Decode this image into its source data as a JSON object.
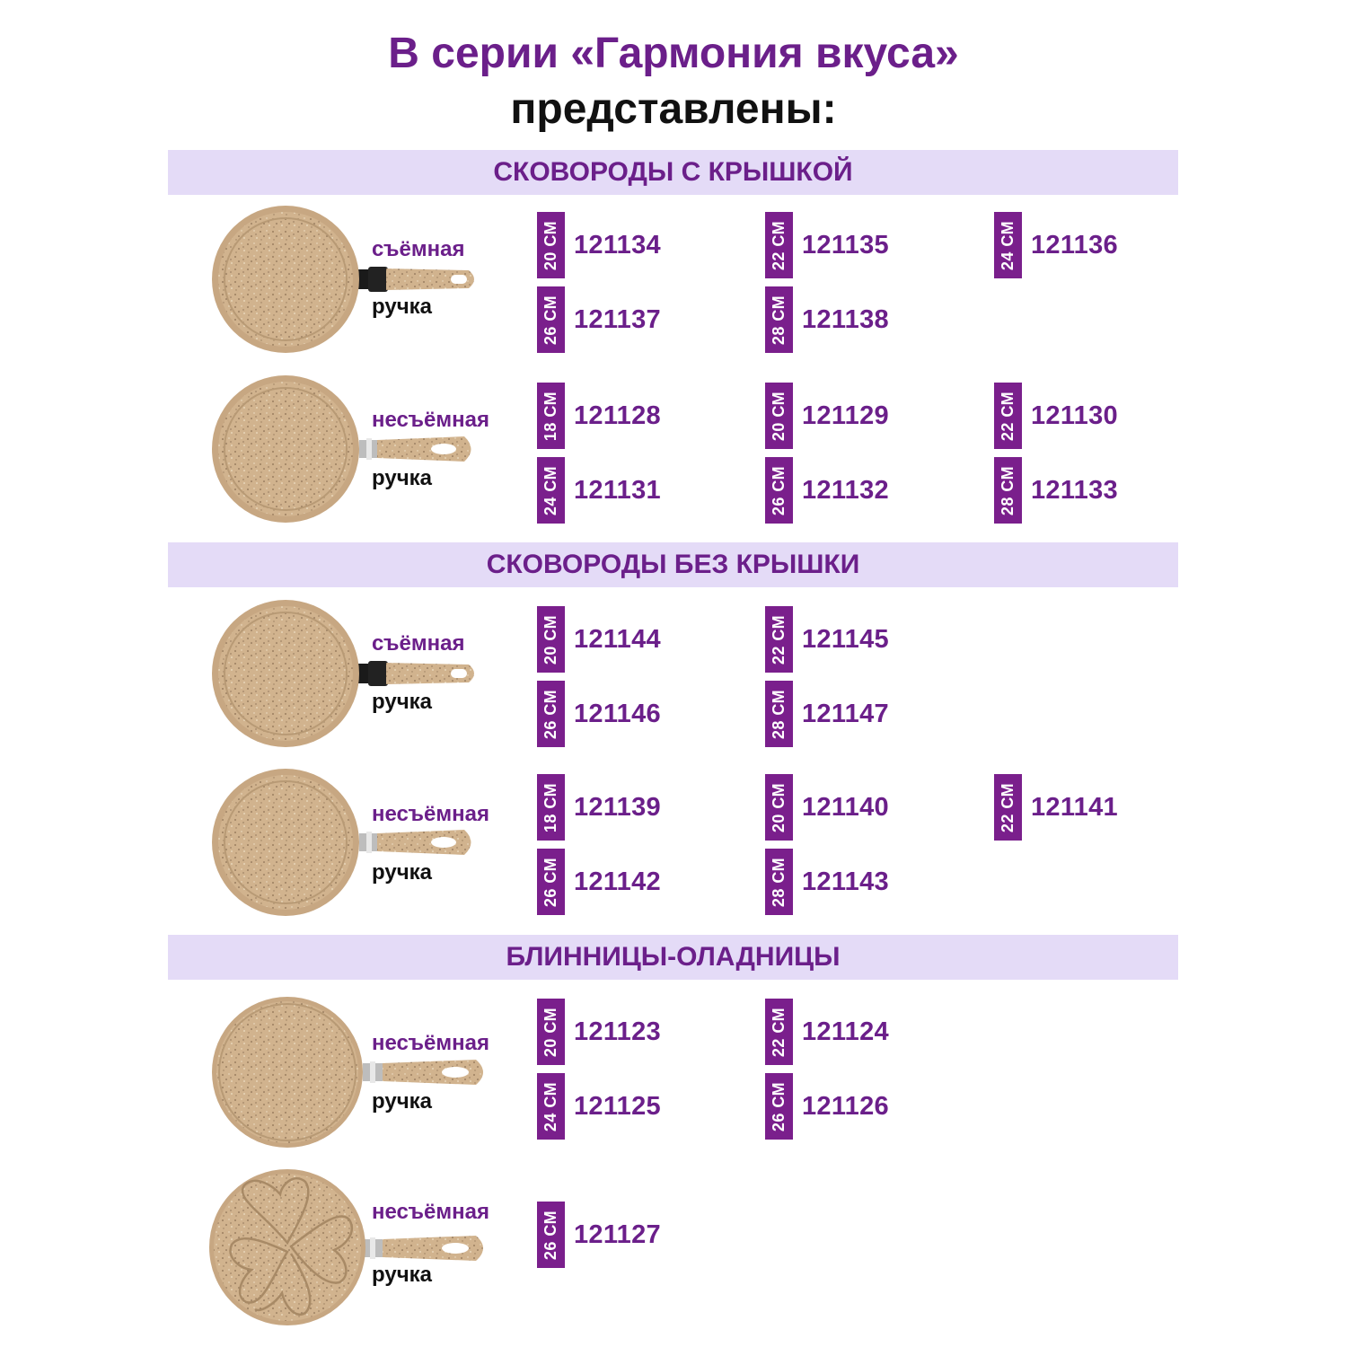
{
  "header": {
    "title": "В серии «Гармония вкуса»",
    "subtitle": "представлены:"
  },
  "bands": [
    "СКОВОРОДЫ С КРЫШКОЙ",
    "СКОВОРОДЫ БЕЗ КРЫШКИ",
    "БЛИННИЦЫ-ОЛАДНИЦЫ"
  ],
  "groups": [
    {
      "handle": "съёмная",
      "handle2": "ручка",
      "items": [
        {
          "size": "20 СМ",
          "code": "121134"
        },
        {
          "size": "22 СМ",
          "code": "121135"
        },
        {
          "size": "24 СМ",
          "code": "121136"
        },
        {
          "size": "26 СМ",
          "code": "121137"
        },
        {
          "size": "28 СМ",
          "code": "121138"
        }
      ]
    },
    {
      "handle": "несъёмная",
      "handle2": "ручка",
      "items": [
        {
          "size": "18 СМ",
          "code": "121128"
        },
        {
          "size": "20 СМ",
          "code": "121129"
        },
        {
          "size": "22 СМ",
          "code": "121130"
        },
        {
          "size": "24 СМ",
          "code": "121131"
        },
        {
          "size": "26 СМ",
          "code": "121132"
        },
        {
          "size": "28 СМ",
          "code": "121133"
        }
      ]
    },
    {
      "handle": "съёмная",
      "handle2": "ручка",
      "items": [
        {
          "size": "20 СМ",
          "code": "121144"
        },
        {
          "size": "22 СМ",
          "code": "121145"
        },
        {
          "size": "26 СМ",
          "code": "121146"
        },
        {
          "size": "28 СМ",
          "code": "121147"
        }
      ]
    },
    {
      "handle": "несъёмная",
      "handle2": "ручка",
      "items": [
        {
          "size": "18 СМ",
          "code": "121139"
        },
        {
          "size": "20 СМ",
          "code": "121140"
        },
        {
          "size": "22 СМ",
          "code": "121141"
        },
        {
          "size": "26 СМ",
          "code": "121142"
        },
        {
          "size": "28 СМ",
          "code": "121143"
        }
      ]
    },
    {
      "handle": "несъёмная",
      "handle2": "ручка",
      "items": [
        {
          "size": "20 СМ",
          "code": "121123"
        },
        {
          "size": "22 СМ",
          "code": "121124"
        },
        {
          "size": "24 СМ",
          "code": "121125"
        },
        {
          "size": "26 СМ",
          "code": "121126"
        }
      ]
    },
    {
      "handle": "несъёмная",
      "handle2": "ручка",
      "items": [
        {
          "size": "26 СМ",
          "code": "121127"
        }
      ]
    }
  ],
  "colors": {
    "accent": "#6b1f8a",
    "tag": "#7a1f8c",
    "band": "#e4dbf7",
    "pan": "#d2b48f"
  }
}
